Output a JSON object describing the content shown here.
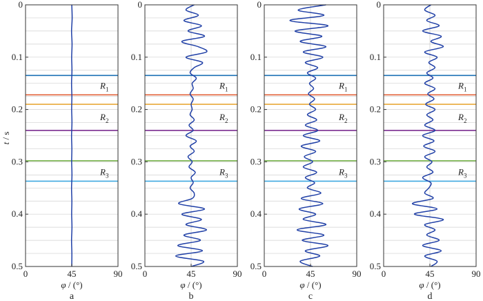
{
  "chart_data": {
    "type": "line",
    "ylabel_var": "t",
    "ylabel_unit": "s",
    "xlabel_var": "φ",
    "xlabel_unit": "(°)",
    "xlim": [
      0,
      90
    ],
    "ylim": [
      0,
      0.5
    ],
    "y_inverted": true,
    "xticks": [
      "0",
      "45",
      "90"
    ],
    "yticks": [
      "0",
      "0.1",
      "0.2",
      "0.3",
      "0.4",
      "0.5"
    ],
    "ytick_values": [
      0,
      0.1,
      0.2,
      0.3,
      0.4,
      0.5
    ],
    "xtick_values": [
      0,
      45,
      90
    ],
    "grid": true,
    "horizon_lines": [
      {
        "t": 0.135,
        "color": "#1a6fb5"
      },
      {
        "t": 0.172,
        "color": "#e0562b"
      },
      {
        "t": 0.19,
        "color": "#e8a838"
      },
      {
        "t": 0.24,
        "color": "#7a2c8f"
      },
      {
        "t": 0.298,
        "color": "#6aab3c"
      },
      {
        "t": 0.337,
        "color": "#3fa8e0"
      }
    ],
    "horizon_labels": [
      {
        "letter": "R",
        "sub": "1",
        "t": 0.155
      },
      {
        "letter": "R",
        "sub": "2",
        "t": 0.215
      },
      {
        "letter": "R",
        "sub": "3",
        "t": 0.32
      }
    ],
    "line_color": "#1f3fa6",
    "panels": [
      {
        "label": "a",
        "t": [
          0,
          0.025,
          0.05,
          0.075,
          0.1,
          0.125,
          0.15,
          0.175,
          0.2,
          0.225,
          0.25,
          0.275,
          0.3,
          0.325,
          0.35,
          0.375,
          0.4,
          0.425,
          0.45,
          0.475,
          0.5
        ],
        "phi": [
          45,
          45.4,
          44.8,
          45.3,
          44.9,
          45.2,
          44.8,
          45.1,
          44.9,
          45.2,
          44.8,
          45.1,
          44.9,
          45.2,
          44.8,
          45.1,
          44.9,
          45.2,
          44.8,
          45.1,
          45
        ]
      },
      {
        "label": "b",
        "t": [
          0,
          0.01,
          0.02,
          0.03,
          0.04,
          0.05,
          0.06,
          0.07,
          0.08,
          0.09,
          0.1,
          0.11,
          0.12,
          0.13,
          0.14,
          0.15,
          0.16,
          0.17,
          0.18,
          0.19,
          0.2,
          0.21,
          0.22,
          0.23,
          0.24,
          0.25,
          0.26,
          0.27,
          0.28,
          0.29,
          0.3,
          0.31,
          0.32,
          0.33,
          0.34,
          0.35,
          0.36,
          0.37,
          0.38,
          0.39,
          0.4,
          0.41,
          0.42,
          0.43,
          0.44,
          0.45,
          0.46,
          0.47,
          0.48,
          0.49,
          0.5
        ],
        "phi": [
          48,
          40,
          52,
          38,
          55,
          42,
          58,
          36,
          52,
          60,
          40,
          56,
          48,
          44,
          50,
          46,
          47,
          44,
          47,
          45,
          46,
          44,
          48,
          43,
          47,
          40,
          50,
          44,
          48,
          42,
          46,
          43,
          49,
          45,
          47,
          44,
          48,
          46,
          33,
          58,
          36,
          55,
          40,
          60,
          38,
          54,
          32,
          56,
          30,
          57,
          45
        ]
      },
      {
        "label": "c",
        "t": [
          0,
          0.01,
          0.02,
          0.03,
          0.04,
          0.05,
          0.06,
          0.07,
          0.08,
          0.09,
          0.1,
          0.11,
          0.12,
          0.13,
          0.14,
          0.15,
          0.16,
          0.17,
          0.18,
          0.19,
          0.2,
          0.21,
          0.22,
          0.23,
          0.24,
          0.25,
          0.26,
          0.27,
          0.28,
          0.29,
          0.3,
          0.31,
          0.32,
          0.33,
          0.34,
          0.35,
          0.36,
          0.37,
          0.38,
          0.39,
          0.4,
          0.41,
          0.42,
          0.43,
          0.44,
          0.45,
          0.46,
          0.47,
          0.48,
          0.49,
          0.5
        ],
        "phi": [
          60,
          33,
          58,
          25,
          62,
          30,
          56,
          35,
          60,
          38,
          57,
          40,
          52,
          42,
          50,
          44,
          48,
          43,
          49,
          44,
          50,
          42,
          51,
          40,
          52,
          38,
          54,
          36,
          50,
          39,
          47,
          38,
          51,
          40,
          49,
          42,
          55,
          36,
          57,
          34,
          50,
          38,
          60,
          32,
          58,
          37,
          62,
          40,
          54,
          35,
          47
        ]
      },
      {
        "label": "d",
        "t": [
          0,
          0.01,
          0.02,
          0.03,
          0.04,
          0.05,
          0.06,
          0.07,
          0.08,
          0.09,
          0.1,
          0.11,
          0.12,
          0.13,
          0.14,
          0.15,
          0.16,
          0.17,
          0.18,
          0.19,
          0.2,
          0.21,
          0.22,
          0.23,
          0.24,
          0.25,
          0.26,
          0.27,
          0.28,
          0.29,
          0.3,
          0.31,
          0.32,
          0.33,
          0.34,
          0.35,
          0.36,
          0.37,
          0.38,
          0.39,
          0.4,
          0.41,
          0.42,
          0.43,
          0.44,
          0.45,
          0.46,
          0.47,
          0.48,
          0.49,
          0.5
        ],
        "phi": [
          46,
          40,
          50,
          42,
          54,
          38,
          56,
          46,
          58,
          40,
          52,
          44,
          50,
          42,
          48,
          40,
          50,
          43,
          49,
          41,
          50,
          42,
          48,
          40,
          50,
          38,
          49,
          39,
          50,
          40,
          47,
          42,
          48,
          38,
          46,
          44,
          40,
          48,
          28,
          52,
          30,
          58,
          40,
          50,
          42,
          54,
          38,
          56,
          40,
          52,
          46
        ]
      }
    ]
  }
}
